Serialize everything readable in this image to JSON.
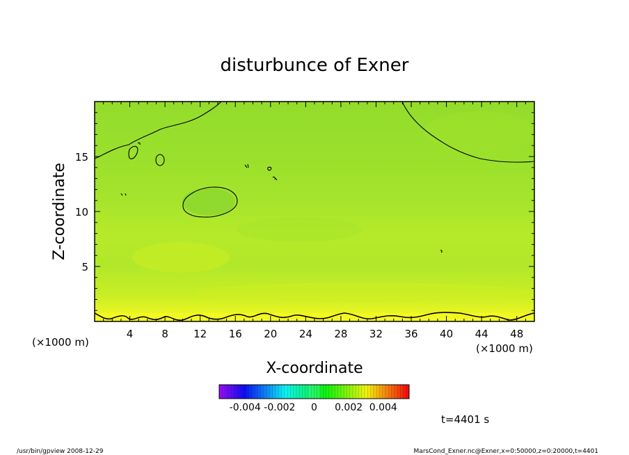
{
  "chart_data": {
    "type": "heatmap",
    "title": "disturbunce of Exner",
    "xlabel": "X-coordinate",
    "ylabel": "Z-coordinate",
    "x_unit": "(×1000 m)",
    "y_unit": "(×1000 m)",
    "xlim": [
      0,
      50
    ],
    "ylim": [
      0,
      20
    ],
    "x_ticks": [
      4,
      8,
      12,
      16,
      20,
      24,
      28,
      32,
      36,
      40,
      44,
      48
    ],
    "y_ticks": [
      5,
      10,
      15
    ],
    "colorbar": {
      "min": -0.0055,
      "max": 0.0055,
      "ticks": [
        "-0.004",
        "-0.002",
        "0",
        "0.002",
        "0.004"
      ],
      "tick_values": [
        -0.004,
        -0.002,
        0,
        0.002,
        0.004
      ]
    },
    "field_description": "Exner perturbation mostly near 0.0005-0.001 (green); slightly positive yellow band near z=0-2 km; contours near zero",
    "time_label": "t=4401 s"
  },
  "footer": {
    "left": "/usr/bin/gpview  2008-12-29",
    "right": "MarsCond_Exner.nc@Exner,x=0:50000,z=0:20000,t=4401"
  }
}
